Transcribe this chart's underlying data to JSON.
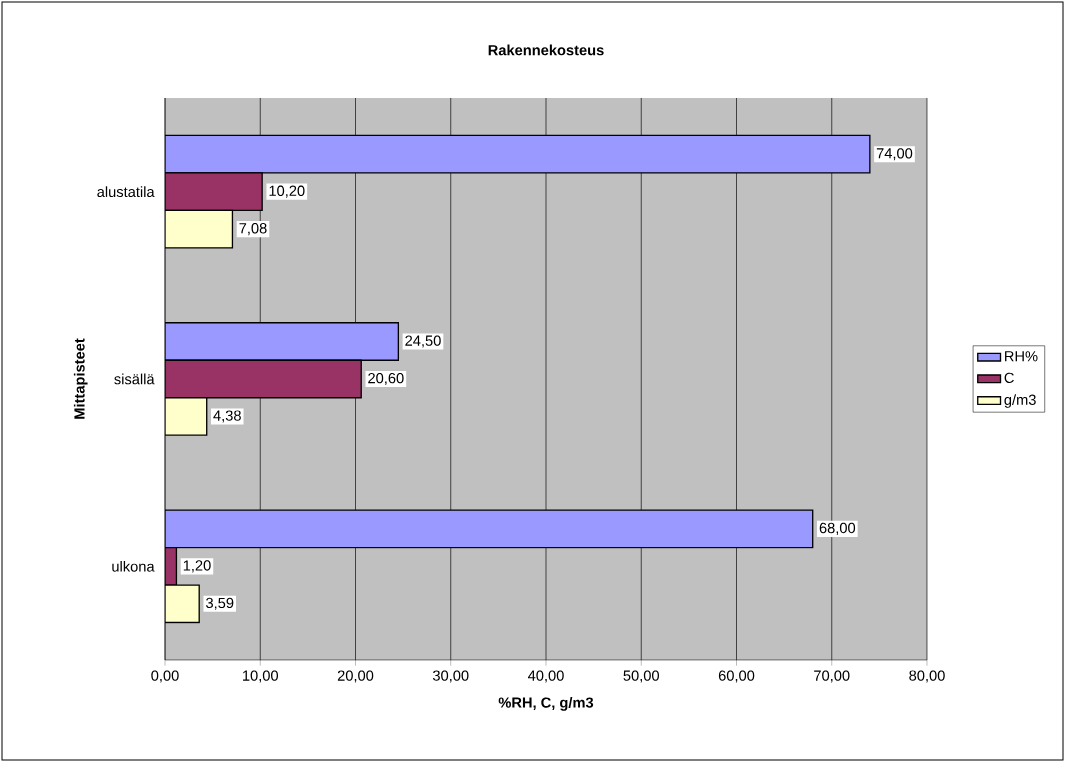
{
  "chart_data": {
    "type": "bar",
    "orientation": "horizontal",
    "title": "Rakennekosteus",
    "xlabel": "%RH, C, g/m3",
    "ylabel": "Mittapisteet",
    "categories": [
      "alustatila",
      "sisällä",
      "ulkona"
    ],
    "series": [
      {
        "name": "RH%",
        "color": "#9999ff",
        "values": [
          74.0,
          24.5,
          68.0
        ],
        "value_labels": [
          "74,00",
          "24,50",
          "68,00"
        ]
      },
      {
        "name": "C",
        "color": "#993366",
        "values": [
          10.2,
          20.6,
          1.2
        ],
        "value_labels": [
          "10,20",
          "20,60",
          "1,20"
        ]
      },
      {
        "name": "g/m3",
        "color": "#ffffcc",
        "values": [
          7.08,
          4.38,
          3.59
        ],
        "value_labels": [
          "7,08",
          "4,38",
          "3,59"
        ]
      }
    ],
    "xlim": [
      0,
      80
    ],
    "xticks": [
      {
        "value": 0,
        "label": "0,00"
      },
      {
        "value": 10,
        "label": "10,00"
      },
      {
        "value": 20,
        "label": "20,00"
      },
      {
        "value": 30,
        "label": "30,00"
      },
      {
        "value": 40,
        "label": "40,00"
      },
      {
        "value": 50,
        "label": "50,00"
      },
      {
        "value": 60,
        "label": "60,00"
      },
      {
        "value": 70,
        "label": "70,00"
      },
      {
        "value": 80,
        "label": "80,00"
      }
    ],
    "grid": "x",
    "legend": "right"
  }
}
